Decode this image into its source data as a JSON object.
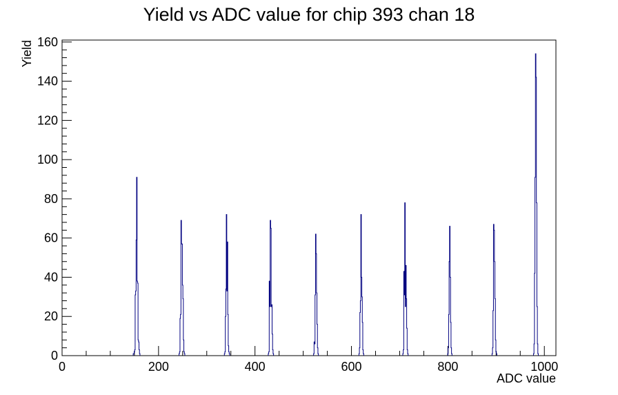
{
  "chart_data": {
    "type": "bar",
    "title": "Yield vs ADC value for chip 393 chan 18",
    "xlabel": "ADC value",
    "ylabel": "Yield",
    "xlim": [
      0,
      1024
    ],
    "ylim": [
      0,
      161
    ],
    "x_ticks": [
      0,
      200,
      400,
      600,
      800,
      1000
    ],
    "y_ticks": [
      0,
      20,
      40,
      60,
      80,
      100,
      120,
      140,
      160
    ],
    "grid": false,
    "legend": "none",
    "line_color": "#000080",
    "bins": [
      {
        "x": 148,
        "y": 1
      },
      {
        "x": 149,
        "y": 1
      },
      {
        "x": 150,
        "y": 2
      },
      {
        "x": 151,
        "y": 3
      },
      {
        "x": 152,
        "y": 31
      },
      {
        "x": 153,
        "y": 33
      },
      {
        "x": 154,
        "y": 59
      },
      {
        "x": 155,
        "y": 91
      },
      {
        "x": 156,
        "y": 38
      },
      {
        "x": 157,
        "y": 37
      },
      {
        "x": 158,
        "y": 8
      },
      {
        "x": 159,
        "y": 7
      },
      {
        "x": 160,
        "y": 3
      },
      {
        "x": 161,
        "y": 1
      },
      {
        "x": 243,
        "y": 1
      },
      {
        "x": 244,
        "y": 2
      },
      {
        "x": 245,
        "y": 19
      },
      {
        "x": 246,
        "y": 21
      },
      {
        "x": 247,
        "y": 69
      },
      {
        "x": 248,
        "y": 57
      },
      {
        "x": 249,
        "y": 57
      },
      {
        "x": 250,
        "y": 36
      },
      {
        "x": 251,
        "y": 29
      },
      {
        "x": 252,
        "y": 8
      },
      {
        "x": 253,
        "y": 2
      },
      {
        "x": 254,
        "y": 1
      },
      {
        "x": 337,
        "y": 1
      },
      {
        "x": 338,
        "y": 2
      },
      {
        "x": 339,
        "y": 20
      },
      {
        "x": 340,
        "y": 34
      },
      {
        "x": 341,
        "y": 72
      },
      {
        "x": 342,
        "y": 33
      },
      {
        "x": 343,
        "y": 58
      },
      {
        "x": 344,
        "y": 21
      },
      {
        "x": 345,
        "y": 5
      },
      {
        "x": 346,
        "y": 2
      },
      {
        "x": 347,
        "y": 1
      },
      {
        "x": 428,
        "y": 1
      },
      {
        "x": 429,
        "y": 2
      },
      {
        "x": 430,
        "y": 38
      },
      {
        "x": 431,
        "y": 25
      },
      {
        "x": 432,
        "y": 69
      },
      {
        "x": 433,
        "y": 65
      },
      {
        "x": 434,
        "y": 25
      },
      {
        "x": 435,
        "y": 26
      },
      {
        "x": 436,
        "y": 11
      },
      {
        "x": 437,
        "y": 3
      },
      {
        "x": 438,
        "y": 1
      },
      {
        "x": 522,
        "y": 1
      },
      {
        "x": 523,
        "y": 7
      },
      {
        "x": 524,
        "y": 6
      },
      {
        "x": 525,
        "y": 31
      },
      {
        "x": 526,
        "y": 62
      },
      {
        "x": 527,
        "y": 52
      },
      {
        "x": 528,
        "y": 32
      },
      {
        "x": 529,
        "y": 16
      },
      {
        "x": 530,
        "y": 4
      },
      {
        "x": 531,
        "y": 1
      },
      {
        "x": 616,
        "y": 1
      },
      {
        "x": 617,
        "y": 4
      },
      {
        "x": 618,
        "y": 22
      },
      {
        "x": 619,
        "y": 28
      },
      {
        "x": 620,
        "y": 72
      },
      {
        "x": 621,
        "y": 40
      },
      {
        "x": 622,
        "y": 30
      },
      {
        "x": 623,
        "y": 17
      },
      {
        "x": 624,
        "y": 3
      },
      {
        "x": 625,
        "y": 1
      },
      {
        "x": 707,
        "y": 1
      },
      {
        "x": 708,
        "y": 3
      },
      {
        "x": 709,
        "y": 43
      },
      {
        "x": 710,
        "y": 31
      },
      {
        "x": 711,
        "y": 78
      },
      {
        "x": 712,
        "y": 25
      },
      {
        "x": 713,
        "y": 46
      },
      {
        "x": 714,
        "y": 29
      },
      {
        "x": 715,
        "y": 14
      },
      {
        "x": 716,
        "y": 3
      },
      {
        "x": 717,
        "y": 1
      },
      {
        "x": 800,
        "y": 1
      },
      {
        "x": 801,
        "y": 4
      },
      {
        "x": 802,
        "y": 21
      },
      {
        "x": 803,
        "y": 48
      },
      {
        "x": 804,
        "y": 66
      },
      {
        "x": 805,
        "y": 40
      },
      {
        "x": 806,
        "y": 17
      },
      {
        "x": 807,
        "y": 4
      },
      {
        "x": 808,
        "y": 1
      },
      {
        "x": 892,
        "y": 1
      },
      {
        "x": 893,
        "y": 4
      },
      {
        "x": 894,
        "y": 23
      },
      {
        "x": 895,
        "y": 67
      },
      {
        "x": 896,
        "y": 64
      },
      {
        "x": 897,
        "y": 48
      },
      {
        "x": 898,
        "y": 29
      },
      {
        "x": 899,
        "y": 8
      },
      {
        "x": 900,
        "y": 2
      },
      {
        "x": 901,
        "y": 1
      },
      {
        "x": 978,
        "y": 1
      },
      {
        "x": 979,
        "y": 6
      },
      {
        "x": 980,
        "y": 42
      },
      {
        "x": 981,
        "y": 91
      },
      {
        "x": 982,
        "y": 154
      },
      {
        "x": 983,
        "y": 142
      },
      {
        "x": 984,
        "y": 78
      },
      {
        "x": 985,
        "y": 25
      },
      {
        "x": 986,
        "y": 6
      },
      {
        "x": 987,
        "y": 1
      }
    ]
  }
}
